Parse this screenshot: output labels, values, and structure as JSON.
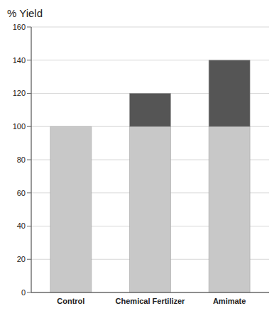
{
  "chart_data": {
    "type": "bar",
    "title": "% Yield",
    "categories": [
      "Control",
      "Chemical Fertilizer",
      "Amimate"
    ],
    "series": [
      {
        "color": "#c8c8c8",
        "values": [
          100,
          100,
          100
        ]
      },
      {
        "color": "#555555",
        "values": [
          0,
          20,
          40
        ]
      }
    ],
    "stacked": true,
    "ylim": [
      0,
      160
    ],
    "yticks": [
      0,
      20,
      40,
      60,
      80,
      100,
      120,
      140,
      160
    ],
    "grid": true
  }
}
